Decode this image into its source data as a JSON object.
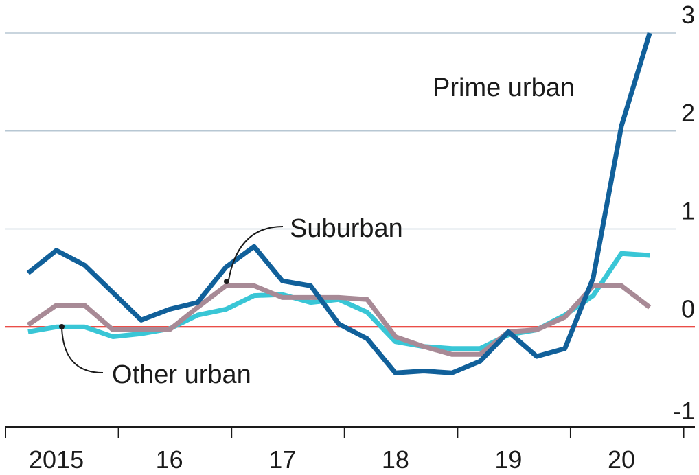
{
  "chart_data": {
    "type": "line",
    "title": "",
    "xlabel": "",
    "ylabel": "",
    "x": [
      2015.0,
      2015.25,
      2015.5,
      2015.75,
      2016.0,
      2016.25,
      2016.5,
      2016.75,
      2017.0,
      2017.25,
      2017.5,
      2017.75,
      2018.0,
      2018.25,
      2018.5,
      2018.75,
      2019.0,
      2019.25,
      2019.5,
      2019.75,
      2020.0,
      2020.25,
      2020.5
    ],
    "xlim": [
      2014.8,
      2020.9
    ],
    "ylim": [
      -1.0,
      3.0
    ],
    "x_ticks": [
      2014.8,
      2015.8,
      2016.8,
      2017.8,
      2018.8,
      2019.8,
      2020.8
    ],
    "x_tick_labels": [
      {
        "label": "2015",
        "x": 2015.25
      },
      {
        "label": "16",
        "x": 2016.25
      },
      {
        "label": "17",
        "x": 2017.25
      },
      {
        "label": "18",
        "x": 2018.25
      },
      {
        "label": "19",
        "x": 2019.25
      },
      {
        "label": "20",
        "x": 2020.25
      }
    ],
    "y_ticks": [
      {
        "label": "3",
        "value": 3
      },
      {
        "label": "2",
        "value": 2
      },
      {
        "label": "1",
        "value": 1
      },
      {
        "label": "0",
        "value": 0
      },
      {
        "label": "-1",
        "value": -1
      }
    ],
    "grid": true,
    "series": [
      {
        "name": "Other urban",
        "color": "#39c6d6",
        "values": [
          -0.05,
          0.0,
          0.0,
          -0.1,
          -0.07,
          -0.02,
          0.12,
          0.18,
          0.32,
          0.33,
          0.25,
          0.28,
          0.15,
          -0.15,
          -0.2,
          -0.22,
          -0.22,
          -0.08,
          -0.03,
          0.12,
          0.32,
          0.75,
          0.73
        ]
      },
      {
        "name": "Suburban",
        "color": "#a88a96",
        "values": [
          0.02,
          0.22,
          0.22,
          -0.03,
          -0.03,
          -0.03,
          0.2,
          0.42,
          0.42,
          0.3,
          0.3,
          0.3,
          0.28,
          -0.1,
          -0.2,
          -0.28,
          -0.28,
          -0.05,
          -0.03,
          0.1,
          0.42,
          0.42,
          0.2
        ]
      },
      {
        "name": "Prime urban",
        "color": "#11609a",
        "values": [
          0.55,
          0.78,
          0.63,
          0.35,
          0.07,
          0.18,
          0.25,
          0.61,
          0.82,
          0.47,
          0.42,
          0.03,
          -0.12,
          -0.47,
          -0.45,
          -0.47,
          -0.35,
          -0.05,
          -0.3,
          -0.22,
          0.5,
          2.05,
          3.0
        ]
      }
    ],
    "annotations": [
      {
        "text": "Prime urban",
        "series": "Prime urban"
      },
      {
        "text": "Suburban",
        "series": "Suburban"
      },
      {
        "text": "Other urban",
        "series": "Other urban"
      }
    ],
    "baseline": {
      "value": 0,
      "color": "#e3120b"
    }
  }
}
